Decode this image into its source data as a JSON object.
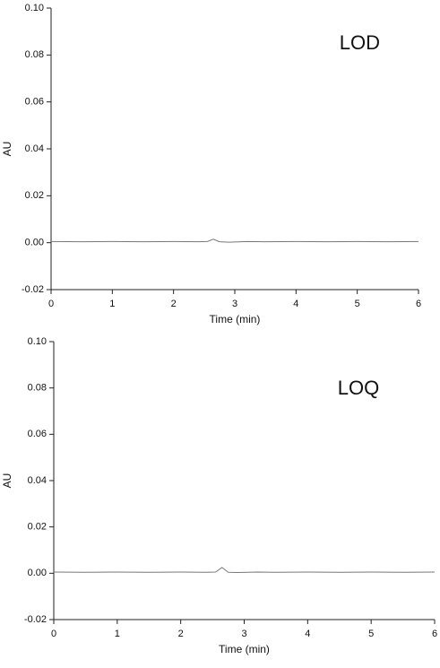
{
  "chart_data": [
    {
      "type": "line",
      "annotation": "LOD",
      "x_label": "Time (min)",
      "y_label": "AU",
      "xlim": [
        0,
        6
      ],
      "ylim": [
        -0.02,
        0.1
      ],
      "xticks": [
        0,
        1,
        2,
        3,
        4,
        5,
        6
      ],
      "yticks": [
        -0.02,
        {
          "value": 0,
          "label": "0.00"
        },
        0.02,
        0.04,
        0.06,
        0.08,
        {
          "value": 0.1,
          "label": "0.10"
        }
      ],
      "x": [
        0,
        0.5,
        1,
        1.5,
        2,
        2.4,
        2.55,
        2.65,
        2.75,
        2.9,
        3.2,
        3.5,
        4,
        4.5,
        5,
        5.5,
        6
      ],
      "series": [
        {
          "color": "#777777",
          "values": [
            0.0005,
            0.0004,
            0.0005,
            0.0004,
            0.0005,
            0.0004,
            0.0005,
            0.0015,
            0.0004,
            0.0002,
            0.0005,
            0.0004,
            0.0005,
            0.0004,
            0.0005,
            0.0004,
            0.0005
          ]
        }
      ]
    },
    {
      "type": "line",
      "annotation": "LOQ",
      "x_label": "Time (min)",
      "y_label": "AU",
      "xlim": [
        0,
        6
      ],
      "ylim": [
        -0.02,
        0.1
      ],
      "xticks": [
        0,
        1,
        2,
        3,
        4,
        5,
        6
      ],
      "yticks": [
        -0.02,
        {
          "value": 0,
          "label": "0.00"
        },
        0.02,
        0.04,
        0.06,
        0.08,
        {
          "value": 0.1,
          "label": "0.10"
        }
      ],
      "x": [
        0,
        0.5,
        1,
        1.5,
        2,
        2.4,
        2.55,
        2.65,
        2.75,
        2.9,
        3.2,
        3.5,
        4,
        4.5,
        5,
        5.5,
        6
      ],
      "series": [
        {
          "color": "#777777",
          "values": [
            0.0005,
            0.0004,
            0.0005,
            0.0004,
            0.0005,
            0.0004,
            0.0005,
            0.0025,
            0.0004,
            0.0003,
            0.0005,
            0.0004,
            0.0005,
            0.0004,
            0.0005,
            0.0004,
            0.0005
          ]
        }
      ]
    }
  ]
}
